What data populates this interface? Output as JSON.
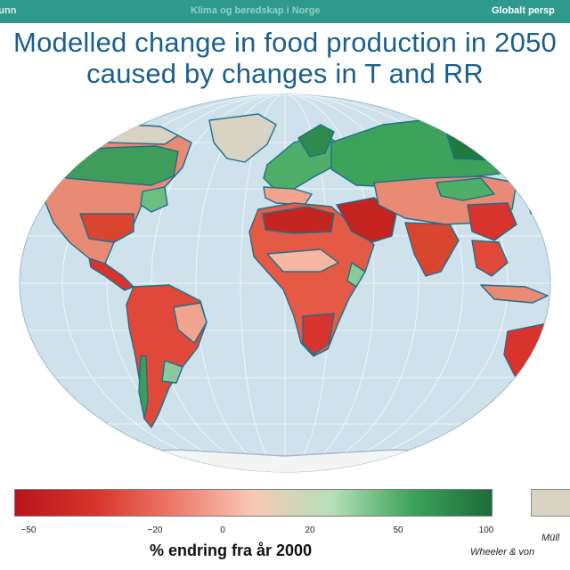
{
  "header": {
    "left": "runn",
    "center": "Klima og beredskap i Norge",
    "right": "Globalt persp"
  },
  "title": {
    "line1": "Modelled change in food production in 2050",
    "line2": "caused by changes in T and RR"
  },
  "legend": {
    "ticks": [
      "−50",
      "−20",
      "0",
      "20",
      "50",
      "100"
    ],
    "label": "% endring fra år 2000",
    "colors": [
      "#b8141a",
      "#d9332d",
      "#ee7a6a",
      "#f8c9b6",
      "#b5dfb8",
      "#3da35a",
      "#1d6b3a"
    ]
  },
  "credits": {
    "line1": "Müll",
    "line2": "Wheeler & von"
  },
  "colors": {
    "ocean": "#cfe2ec",
    "no_data": "#d8d3c2",
    "coast": "#1f6f8b",
    "header_bar": "#2e9a8e",
    "title_text": "#1a5f8f"
  }
}
